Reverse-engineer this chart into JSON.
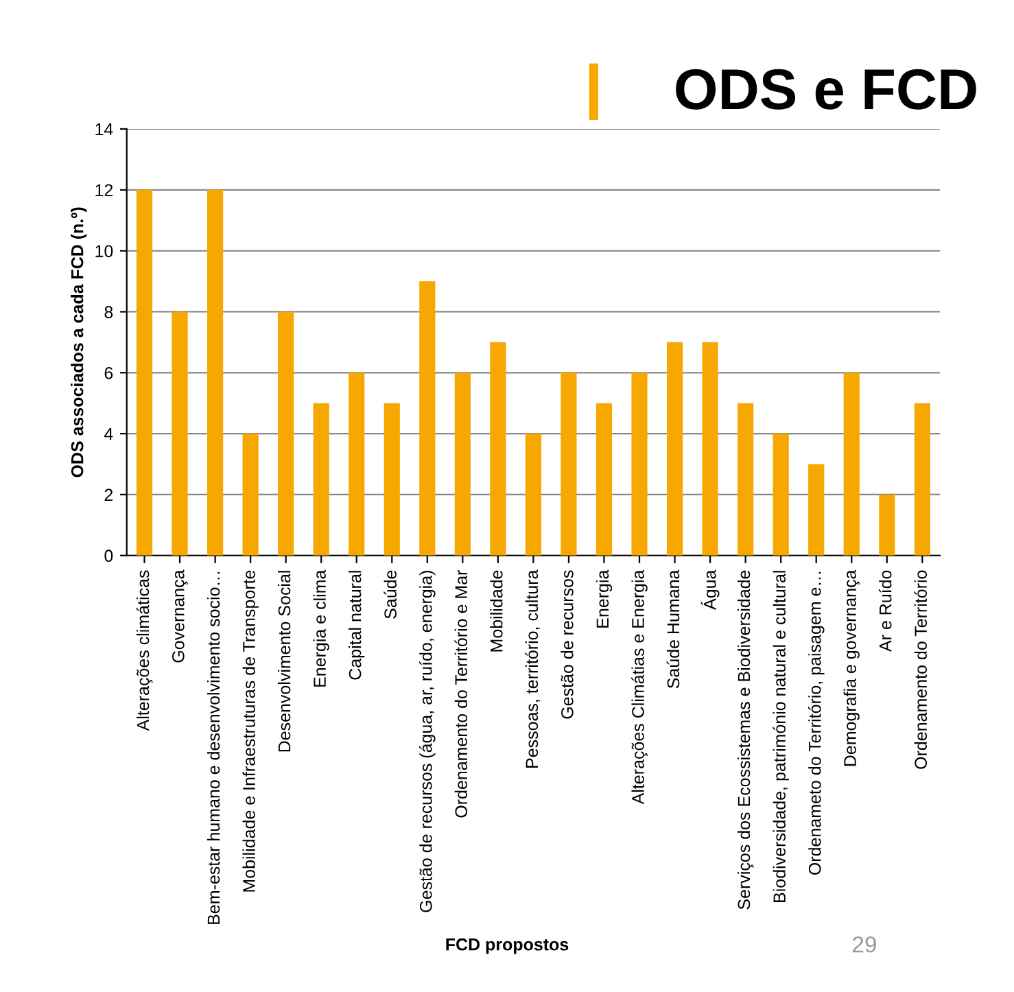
{
  "chart_data": {
    "type": "bar",
    "title": "ODS e FCD",
    "categories": [
      "Alterações climáticas",
      "Governança",
      "Bem-estar humano e desenvolvimento socio…",
      "Mobilidade e Infraestruturas de Transporte",
      "Desenvolvimento Social",
      "Energia e clima",
      "Capital natural",
      "Saúde",
      "Gestão de recursos (água, ar, ruído, energia)",
      "Ordenamento do Território e Mar",
      "Mobilidade",
      "Pessoas, território, cultura",
      "Gestão de recursos",
      "Energia",
      "Alterações Climátias e Energia",
      "Saúde Humana",
      "Água",
      "Serviços dos Ecossistemas e Biodiversidade",
      "Biodiversidade, património natural e cultural",
      "Ordenameto do Território, paisagem e…",
      "Demografia e governança",
      "Ar e Ruído",
      "Ordenamento do Território"
    ],
    "values": [
      12,
      8,
      12,
      4,
      8,
      5,
      6,
      5,
      9,
      6,
      7,
      4,
      6,
      5,
      6,
      7,
      7,
      5,
      4,
      3,
      6,
      2,
      5
    ],
    "color": "#f7a800",
    "xlabel": "FCD propostos",
    "ylabel": "ODS associados a cada FCD (n.º)",
    "ylim": [
      0,
      14
    ],
    "yticks": [
      0,
      2,
      4,
      6,
      8,
      10,
      12,
      14
    ],
    "grid": "y",
    "annotations": [
      "29"
    ]
  }
}
